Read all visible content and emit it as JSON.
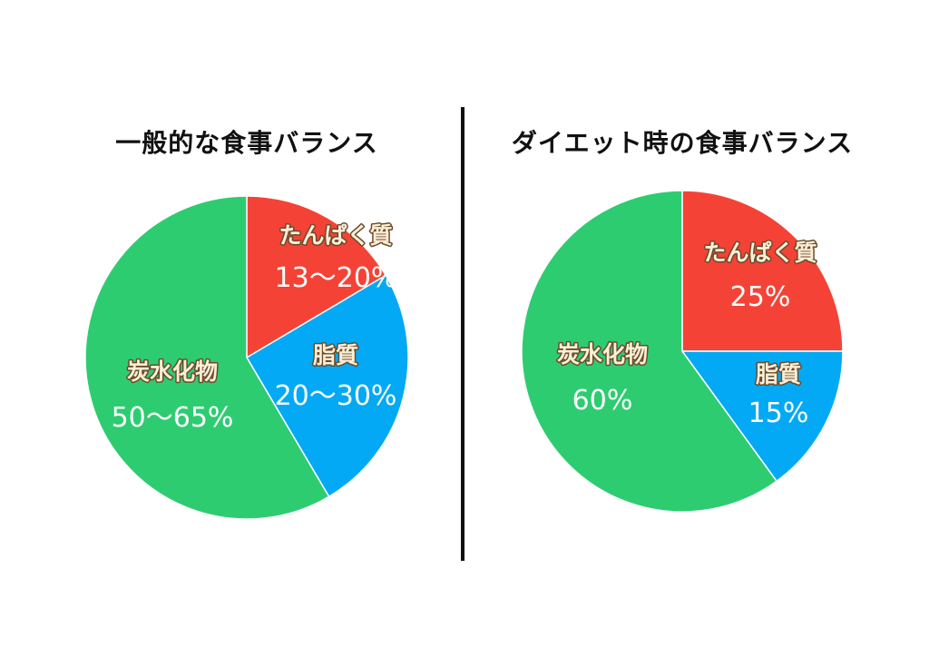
{
  "chart_data": [
    {
      "type": "pie",
      "title": "一般的な食事バランス",
      "colors": {
        "protein": "#f44336",
        "fat": "#03a9f4",
        "carbohydrate": "#2ecc71"
      },
      "slices": [
        {
          "key": "protein",
          "label": "たんぱく質",
          "value_label": "13〜20%",
          "value": 16.5
        },
        {
          "key": "fat",
          "label": "脂質",
          "value_label": "20〜30%",
          "value": 25
        },
        {
          "key": "carbohydrate",
          "label": "炭水化物",
          "value_label": "50〜65%",
          "value": 58.5
        }
      ]
    },
    {
      "type": "pie",
      "title": "ダイエット時の食事バランス",
      "colors": {
        "protein": "#f44336",
        "fat": "#03a9f4",
        "carbohydrate": "#2ecc71"
      },
      "slices": [
        {
          "key": "protein",
          "label": "たんぱく質",
          "value_label": "25%",
          "value": 25
        },
        {
          "key": "fat",
          "label": "脂質",
          "value_label": "15%",
          "value": 15
        },
        {
          "key": "carbohydrate",
          "label": "炭水化物",
          "value_label": "60%",
          "value": 60
        }
      ]
    }
  ]
}
